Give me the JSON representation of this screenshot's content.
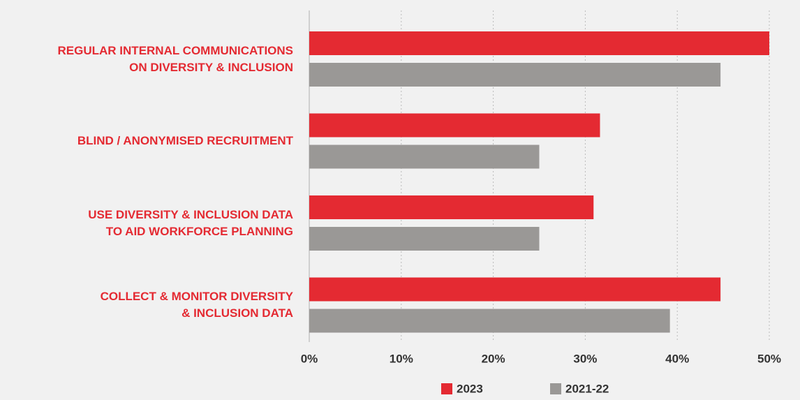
{
  "chart_data": {
    "type": "barh",
    "categories": [
      "REGULAR INTERNAL COMMUNICATIONS\nON DIVERSITY & INCLUSION",
      "BLIND / ANONYMISED RECRUITMENT",
      "USE DIVERSITY & INCLUSION DATA\nTO AID WORKFORCE PLANNING",
      "COLLECT & MONITOR DIVERSITY\n& INCLUSION DATA"
    ],
    "series": [
      {
        "name": "2023",
        "color": "#e42a32",
        "values": [
          50,
          31.6,
          30.9,
          44.7
        ]
      },
      {
        "name": "2021-22",
        "color": "#9a9896",
        "values": [
          44.7,
          25.0,
          25.0,
          39.2
        ]
      }
    ],
    "xlim": [
      0,
      50
    ],
    "xticks": [
      {
        "value": 0,
        "label": "0%"
      },
      {
        "value": 10,
        "label": "10%"
      },
      {
        "value": 20,
        "label": "20%"
      },
      {
        "value": 30,
        "label": "30%"
      },
      {
        "value": 40,
        "label": "40%"
      },
      {
        "value": 50,
        "label": "50%"
      }
    ],
    "grid": true,
    "legend": "bottom"
  }
}
